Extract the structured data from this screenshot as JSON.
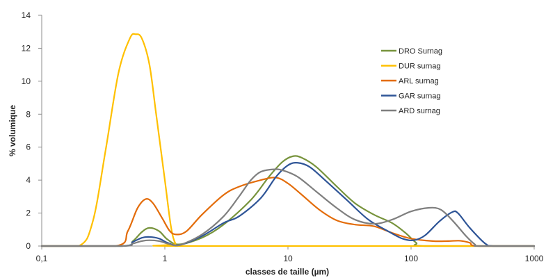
{
  "chart_data": {
    "type": "line",
    "xlabel": "classes de taille (µm)",
    "ylabel": "% volumique",
    "xscale": "log",
    "xlim": [
      0.1,
      1000
    ],
    "ylim": [
      0,
      14
    ],
    "xticks": [
      {
        "value": 0.1,
        "label": "0,1"
      },
      {
        "value": 1,
        "label": "1"
      },
      {
        "value": 10,
        "label": "10"
      },
      {
        "value": 100,
        "label": "100"
      },
      {
        "value": 1000,
        "label": "1000"
      }
    ],
    "yticks": [
      {
        "value": 0,
        "label": "0"
      },
      {
        "value": 2,
        "label": "2"
      },
      {
        "value": 4,
        "label": "4"
      },
      {
        "value": 6,
        "label": "6"
      },
      {
        "value": 8,
        "label": "8"
      },
      {
        "value": 10,
        "label": "10"
      },
      {
        "value": 12,
        "label": "12"
      },
      {
        "value": 14,
        "label": "14"
      }
    ],
    "grid": false,
    "legend": "top-right",
    "series": [
      {
        "name": "DRO Surnag",
        "color": "#77933c",
        "points": [
          [
            0.1,
            0
          ],
          [
            0.45,
            0
          ],
          [
            0.55,
            0.3
          ],
          [
            0.65,
            0.85
          ],
          [
            0.75,
            1.1
          ],
          [
            0.9,
            0.9
          ],
          [
            1.05,
            0.4
          ],
          [
            1.3,
            0.1
          ],
          [
            2,
            0.5
          ],
          [
            3,
            1.3
          ],
          [
            5,
            2.8
          ],
          [
            7,
            4.2
          ],
          [
            9,
            5.1
          ],
          [
            11,
            5.45
          ],
          [
            13,
            5.35
          ],
          [
            17,
            4.8
          ],
          [
            25,
            3.6
          ],
          [
            35,
            2.6
          ],
          [
            50,
            1.9
          ],
          [
            70,
            1.4
          ],
          [
            90,
            0.8
          ],
          [
            110,
            0.2
          ],
          [
            130,
            0
          ],
          [
            1000,
            0
          ]
        ]
      },
      {
        "name": "DUR surnag",
        "color": "#ffc000",
        "points": [
          [
            0.1,
            0
          ],
          [
            0.2,
            0
          ],
          [
            0.26,
            1.5
          ],
          [
            0.33,
            5.8
          ],
          [
            0.42,
            10.5
          ],
          [
            0.52,
            12.6
          ],
          [
            0.58,
            12.85
          ],
          [
            0.65,
            12.6
          ],
          [
            0.75,
            11
          ],
          [
            0.85,
            8
          ],
          [
            1,
            4
          ],
          [
            1.12,
            1.2
          ],
          [
            1.22,
            0.15
          ],
          [
            1.35,
            0
          ],
          [
            1000,
            0
          ]
        ]
      },
      {
        "name": "ARL surnag",
        "color": "#e36c0a",
        "points": [
          [
            0.1,
            0
          ],
          [
            0.4,
            0
          ],
          [
            0.5,
            0.9
          ],
          [
            0.6,
            2.3
          ],
          [
            0.7,
            2.85
          ],
          [
            0.8,
            2.6
          ],
          [
            0.95,
            1.7
          ],
          [
            1.1,
            0.9
          ],
          [
            1.25,
            0.7
          ],
          [
            1.5,
            0.9
          ],
          [
            2,
            1.9
          ],
          [
            3,
            3.1
          ],
          [
            4,
            3.6
          ],
          [
            6,
            4.0
          ],
          [
            8,
            4.15
          ],
          [
            10,
            3.8
          ],
          [
            13,
            3.1
          ],
          [
            18,
            2.2
          ],
          [
            25,
            1.55
          ],
          [
            35,
            1.3
          ],
          [
            50,
            1.2
          ],
          [
            70,
            0.8
          ],
          [
            100,
            0.45
          ],
          [
            150,
            0.3
          ],
          [
            200,
            0.3
          ],
          [
            250,
            0.32
          ],
          [
            300,
            0.2
          ],
          [
            350,
            0
          ],
          [
            1000,
            0
          ]
        ]
      },
      {
        "name": "GAR surnag",
        "color": "#2f5597",
        "points": [
          [
            0.1,
            0
          ],
          [
            0.45,
            0
          ],
          [
            0.55,
            0.25
          ],
          [
            0.65,
            0.5
          ],
          [
            0.75,
            0.55
          ],
          [
            0.9,
            0.45
          ],
          [
            1.05,
            0.2
          ],
          [
            1.3,
            0.05
          ],
          [
            2,
            0.6
          ],
          [
            3,
            1.4
          ],
          [
            4,
            1.8
          ],
          [
            6,
            2.9
          ],
          [
            8,
            4.2
          ],
          [
            10,
            4.9
          ],
          [
            12,
            5.05
          ],
          [
            15,
            4.8
          ],
          [
            20,
            4.0
          ],
          [
            30,
            2.8
          ],
          [
            45,
            1.6
          ],
          [
            65,
            0.9
          ],
          [
            85,
            0.45
          ],
          [
            105,
            0.35
          ],
          [
            130,
            0.65
          ],
          [
            170,
            1.5
          ],
          [
            215,
            2.05
          ],
          [
            240,
            2.0
          ],
          [
            300,
            1.1
          ],
          [
            400,
            0.15
          ],
          [
            470,
            0
          ],
          [
            1000,
            0
          ]
        ]
      },
      {
        "name": "ARD surnag",
        "color": "#7f7f7f",
        "points": [
          [
            0.1,
            0
          ],
          [
            0.45,
            0
          ],
          [
            0.55,
            0.15
          ],
          [
            0.65,
            0.3
          ],
          [
            0.75,
            0.35
          ],
          [
            0.9,
            0.3
          ],
          [
            1.05,
            0.15
          ],
          [
            1.3,
            0.05
          ],
          [
            2,
            0.7
          ],
          [
            3,
            1.8
          ],
          [
            4,
            3.0
          ],
          [
            5,
            4.0
          ],
          [
            6,
            4.5
          ],
          [
            7.5,
            4.65
          ],
          [
            9,
            4.6
          ],
          [
            12,
            4.2
          ],
          [
            17,
            3.3
          ],
          [
            25,
            2.3
          ],
          [
            35,
            1.6
          ],
          [
            50,
            1.35
          ],
          [
            70,
            1.6
          ],
          [
            100,
            2.1
          ],
          [
            140,
            2.32
          ],
          [
            175,
            2.2
          ],
          [
            220,
            1.5
          ],
          [
            280,
            0.6
          ],
          [
            330,
            0.1
          ],
          [
            360,
            0
          ],
          [
            1000,
            0
          ]
        ]
      }
    ]
  }
}
